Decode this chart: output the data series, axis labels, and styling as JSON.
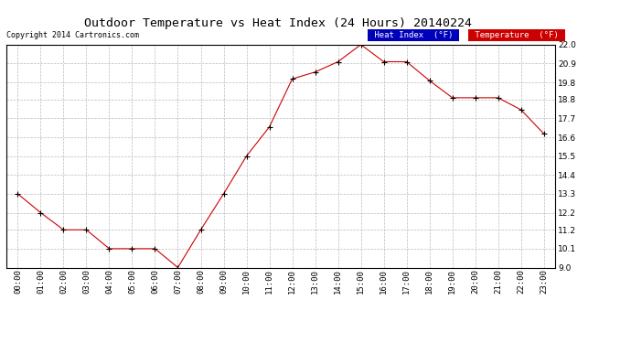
{
  "title": "Outdoor Temperature vs Heat Index (24 Hours) 20140224",
  "copyright_text": "Copyright 2014 Cartronics.com",
  "x_labels": [
    "00:00",
    "01:00",
    "02:00",
    "03:00",
    "04:00",
    "05:00",
    "06:00",
    "07:00",
    "08:00",
    "09:00",
    "10:00",
    "11:00",
    "12:00",
    "13:00",
    "14:00",
    "15:00",
    "16:00",
    "17:00",
    "18:00",
    "19:00",
    "20:00",
    "21:00",
    "22:00",
    "23:00"
  ],
  "temperature_values": [
    13.3,
    12.2,
    11.2,
    11.2,
    10.1,
    10.1,
    10.1,
    9.0,
    11.2,
    13.3,
    15.5,
    17.2,
    20.0,
    20.4,
    21.0,
    22.0,
    21.0,
    21.0,
    19.9,
    18.9,
    18.9,
    18.9,
    18.2,
    16.8
  ],
  "ylim": [
    9.0,
    22.0
  ],
  "yticks": [
    9.0,
    10.1,
    11.2,
    12.2,
    13.3,
    14.4,
    15.5,
    16.6,
    17.7,
    18.8,
    19.8,
    20.9,
    22.0
  ],
  "line_color": "#cc0000",
  "marker_color": "#000000",
  "grid_color": "#bbbbbb",
  "background_color": "#ffffff",
  "legend_heat_bg": "#0000bb",
  "legend_temp_bg": "#cc0000",
  "legend_text_color": "#ffffff",
  "title_fontsize": 9.5,
  "tick_fontsize": 6.5,
  "copyright_fontsize": 6.0,
  "legend_fontsize": 6.5
}
